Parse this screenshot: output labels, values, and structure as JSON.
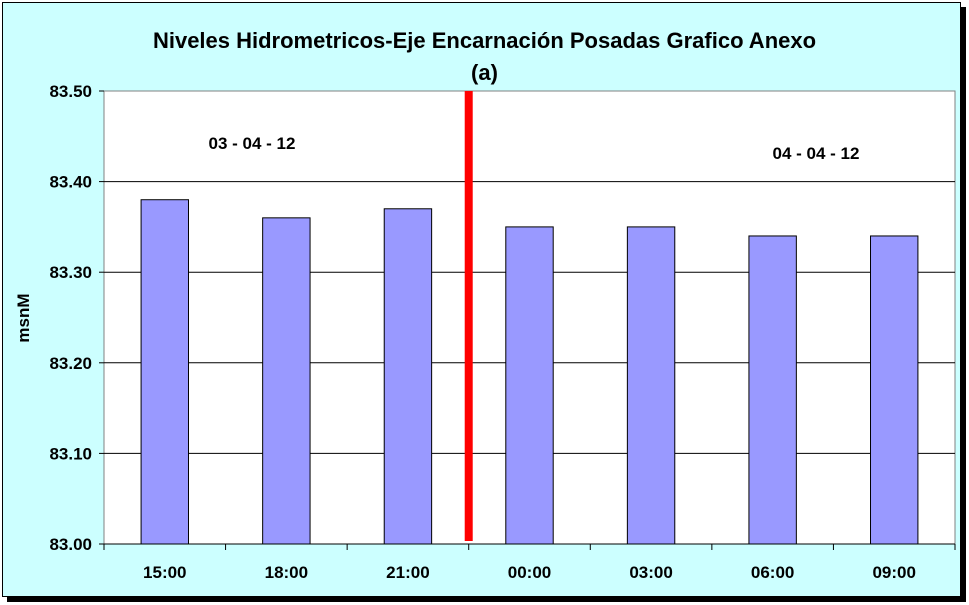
{
  "chart_data": {
    "type": "bar",
    "title": "Niveles Hidrometricos-Eje Encarnación Posadas Grafico Anexo",
    "subtitle": "(a)",
    "xlabel": "",
    "ylabel": "msnM",
    "categories": [
      "15:00",
      "18:00",
      "21:00",
      "00:00",
      "03:00",
      "06:00",
      "09:00"
    ],
    "values": [
      83.38,
      83.36,
      83.37,
      83.35,
      83.35,
      83.34,
      83.34
    ],
    "ylim": [
      83.0,
      83.5
    ],
    "yticks": [
      "83.00",
      "83.10",
      "83.20",
      "83.30",
      "83.40",
      "83.50"
    ],
    "grid": true,
    "annotations": [
      {
        "text": "03 - 04 - 12"
      },
      {
        "text": "04 - 04 - 12"
      }
    ],
    "divider_after_category": 2,
    "colors": {
      "bar": "#9999ff",
      "divider": "#ff0000",
      "plot_background": "#ffffff",
      "chart_background": "#ccffff"
    }
  }
}
